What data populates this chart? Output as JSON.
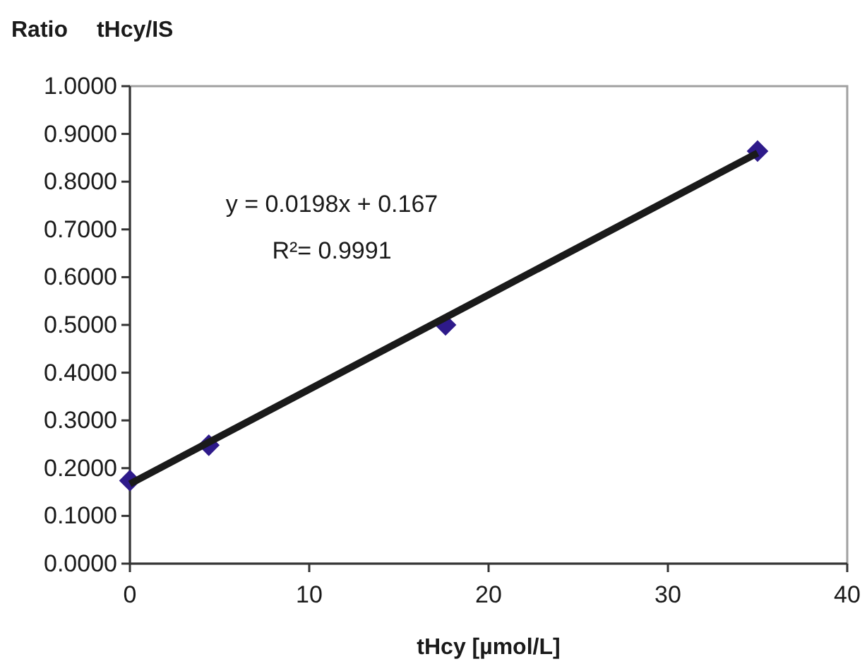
{
  "chart_data": {
    "type": "scatter",
    "ylabel": "Ratio tHcy/IS",
    "xlabel": "tHcy [µmol/L]",
    "xlim": [
      0,
      40
    ],
    "xticks": [
      0,
      10,
      20,
      30,
      40
    ],
    "ylim": [
      0,
      1
    ],
    "yticks": [
      {
        "value": 0,
        "label": "0.0000"
      },
      {
        "value": 0.1,
        "label": "0.1000"
      },
      {
        "value": 0.2,
        "label": "0.2000"
      },
      {
        "value": 0.3,
        "label": "0.3000"
      },
      {
        "value": 0.4,
        "label": "0.4000"
      },
      {
        "value": 0.5,
        "label": "0.5000"
      },
      {
        "value": 0.6,
        "label": "0.6000"
      },
      {
        "value": 0.7,
        "label": "0.7000"
      },
      {
        "value": 0.8,
        "label": "0.8000"
      },
      {
        "value": 0.9,
        "label": "0.9000"
      },
      {
        "value": 1,
        "label": "1.0000"
      }
    ],
    "grid": false,
    "marker": "diamond",
    "series": [
      {
        "color": "#2e1a8a",
        "x": [
          0,
          4.4,
          17.6,
          35.0
        ],
        "values": [
          0.174,
          0.248,
          0.5,
          0.864
        ]
      },
      {
        "type": "line",
        "color": "#1a1a1a",
        "marker": "none",
        "line_style": "solid",
        "x": [
          0,
          35.0
        ],
        "values": [
          0.167,
          0.86
        ]
      }
    ],
    "annotations": [
      "y = 0.0198x + 0.167",
      "R²= 0.9991"
    ]
  }
}
